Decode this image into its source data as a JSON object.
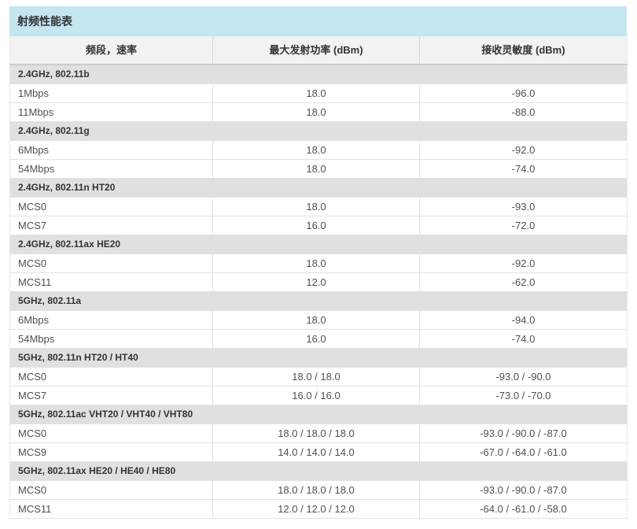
{
  "table": {
    "title": "射频性能表",
    "columns": [
      "频段，速率",
      "最大发射功率 (dBm)",
      "接收灵敏度 (dBm)"
    ],
    "sections": [
      {
        "label": "2.4GHz, 802.11b",
        "rows": [
          [
            "1Mbps",
            "18.0",
            "-96.0"
          ],
          [
            "11Mbps",
            "18.0",
            "-88.0"
          ]
        ]
      },
      {
        "label": "2.4GHz, 802.11g",
        "rows": [
          [
            "6Mbps",
            "18.0",
            "-92.0"
          ],
          [
            "54Mbps",
            "18.0",
            "-74.0"
          ]
        ]
      },
      {
        "label": "2.4GHz, 802.11n HT20",
        "rows": [
          [
            "MCS0",
            "18.0",
            "-93.0"
          ],
          [
            "MCS7",
            "16.0",
            "-72.0"
          ]
        ]
      },
      {
        "label": "2.4GHz, 802.11ax HE20",
        "rows": [
          [
            "MCS0",
            "18.0",
            "-92.0"
          ],
          [
            "MCS11",
            "12.0",
            "-62.0"
          ]
        ]
      },
      {
        "label": "5GHz, 802.11a",
        "rows": [
          [
            "6Mbps",
            "18.0",
            "-94.0"
          ],
          [
            "54Mbps",
            "16.0",
            "-74.0"
          ]
        ]
      },
      {
        "label": "5GHz, 802.11n HT20 / HT40",
        "rows": [
          [
            "MCS0",
            "18.0 / 18.0",
            "-93.0 / -90.0"
          ],
          [
            "MCS7",
            "16.0 / 16.0",
            "-73.0 / -70.0"
          ]
        ]
      },
      {
        "label": "5GHz, 802.11ac VHT20 / VHT40 / VHT80",
        "rows": [
          [
            "MCS0",
            "18.0 / 18.0 / 18.0",
            "-93.0 / -90.0 / -87.0"
          ],
          [
            "MCS9",
            "14.0 / 14.0 / 14.0",
            "-67.0 / -64.0 / -61.0"
          ]
        ]
      },
      {
        "label": "5GHz, 802.11ax HE20 / HE40 / HE80",
        "rows": [
          [
            "MCS0",
            "18.0 / 18.0 / 18.0",
            "-93.0 / -90.0 / -87.0"
          ],
          [
            "MCS11",
            "12.0 / 12.0 / 12.0",
            "-64.0 / -61.0 / -58.0"
          ]
        ]
      }
    ],
    "colors": {
      "title_bar_bg": "#c3e6f0",
      "header_bg": "#f2f2f3",
      "section_bg": "#e0e0e2",
      "row_border": "#e2e2e2",
      "header_bottom_border": "#cdcdcd",
      "heading_text": "#333333",
      "data_text": "#4f4f4f"
    }
  },
  "chart_data": {
    "type": "table",
    "title": "射频性能表",
    "columns": [
      "频段，速率",
      "最大发射功率 (dBm)",
      "接收灵敏度 (dBm)"
    ],
    "sections": [
      {
        "label": "2.4GHz, 802.11b",
        "rows": [
          [
            "1Mbps",
            "18.0",
            "-96.0"
          ],
          [
            "11Mbps",
            "18.0",
            "-88.0"
          ]
        ]
      },
      {
        "label": "2.4GHz, 802.11g",
        "rows": [
          [
            "6Mbps",
            "18.0",
            "-92.0"
          ],
          [
            "54Mbps",
            "18.0",
            "-74.0"
          ]
        ]
      },
      {
        "label": "2.4GHz, 802.11n HT20",
        "rows": [
          [
            "MCS0",
            "18.0",
            "-93.0"
          ],
          [
            "MCS7",
            "16.0",
            "-72.0"
          ]
        ]
      },
      {
        "label": "2.4GHz, 802.11ax HE20",
        "rows": [
          [
            "MCS0",
            "18.0",
            "-92.0"
          ],
          [
            "MCS11",
            "12.0",
            "-62.0"
          ]
        ]
      },
      {
        "label": "5GHz, 802.11a",
        "rows": [
          [
            "6Mbps",
            "18.0",
            "-94.0"
          ],
          [
            "54Mbps",
            "16.0",
            "-74.0"
          ]
        ]
      },
      {
        "label": "5GHz, 802.11n HT20 / HT40",
        "rows": [
          [
            "MCS0",
            "18.0 / 18.0",
            "-93.0 / -90.0"
          ],
          [
            "MCS7",
            "16.0 / 16.0",
            "-73.0 / -70.0"
          ]
        ]
      },
      {
        "label": "5GHz, 802.11ac VHT20 / VHT40 / VHT80",
        "rows": [
          [
            "MCS0",
            "18.0 / 18.0 / 18.0",
            "-93.0 / -90.0 / -87.0"
          ],
          [
            "MCS9",
            "14.0 / 14.0 / 14.0",
            "-67.0 / -64.0 / -61.0"
          ]
        ]
      },
      {
        "label": "5GHz, 802.11ax HE20 / HE40 / HE80",
        "rows": [
          [
            "MCS0",
            "18.0 / 18.0 / 18.0",
            "-93.0 / -90.0 / -87.0"
          ],
          [
            "MCS11",
            "12.0 / 12.0 / 12.0",
            "-64.0 / -61.0 / -58.0"
          ]
        ]
      }
    ]
  }
}
